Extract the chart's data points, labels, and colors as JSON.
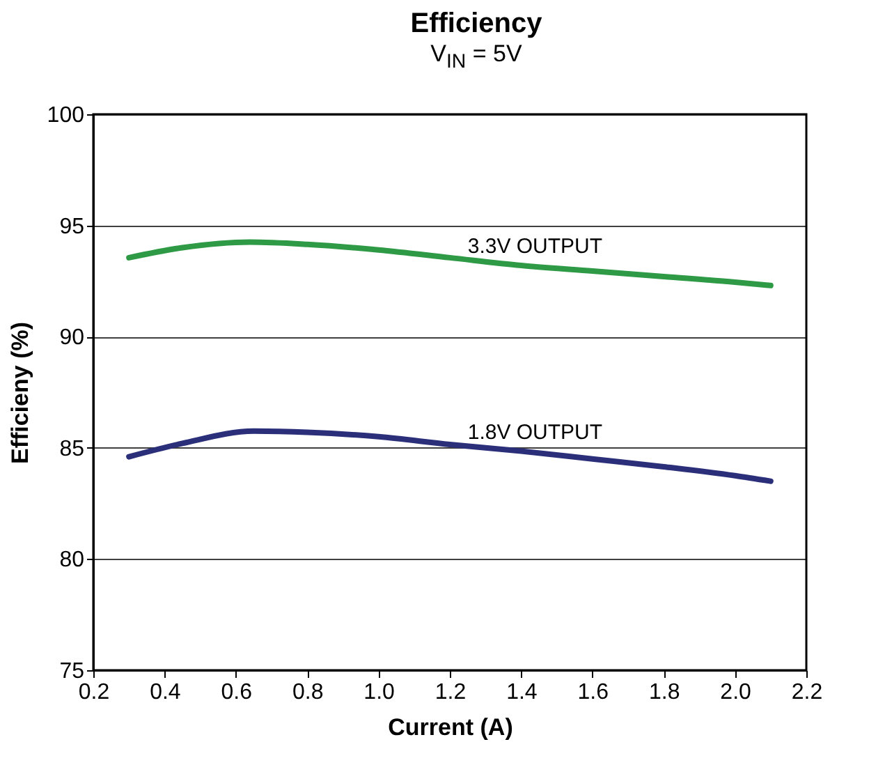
{
  "chart_data": {
    "type": "line",
    "title": "Efficiency",
    "subtitle": "V$_{IN}$ = 5V",
    "xlabel": "Current (A)",
    "ylabel": "Efficieny (%)",
    "xlim": [
      0.2,
      2.2
    ],
    "xticks": [
      0.2,
      0.4,
      0.6,
      0.8,
      {
        "value": 1,
        "label": "1.0"
      },
      1.2,
      1.4,
      1.6,
      1.8,
      {
        "value": 2,
        "label": "2.0"
      },
      2.2
    ],
    "ylim": [
      75,
      100
    ],
    "yticks": [
      75,
      80,
      85,
      90,
      95,
      100
    ],
    "grid": "y",
    "legend": false,
    "series": [
      {
        "name": "3.3V OUTPUT",
        "color": "#2e9a45",
        "x": [
          0.3,
          0.45,
          0.64,
          0.8,
          1.0,
          1.2,
          1.4,
          1.6,
          1.8,
          2.0,
          2.1
        ],
        "values": [
          93.55,
          94.0,
          94.25,
          94.15,
          93.9,
          93.55,
          93.2,
          92.95,
          92.7,
          92.45,
          92.3
        ]
      },
      {
        "name": "1.8V OUTPUT",
        "color": "#2b2f7a",
        "x": [
          0.3,
          0.45,
          0.65,
          0.8,
          1.0,
          1.2,
          1.4,
          1.6,
          1.8,
          2.0,
          2.1
        ],
        "values": [
          84.6,
          85.2,
          85.75,
          85.7,
          85.5,
          85.15,
          84.85,
          84.5,
          84.15,
          83.75,
          83.5
        ]
      }
    ]
  }
}
